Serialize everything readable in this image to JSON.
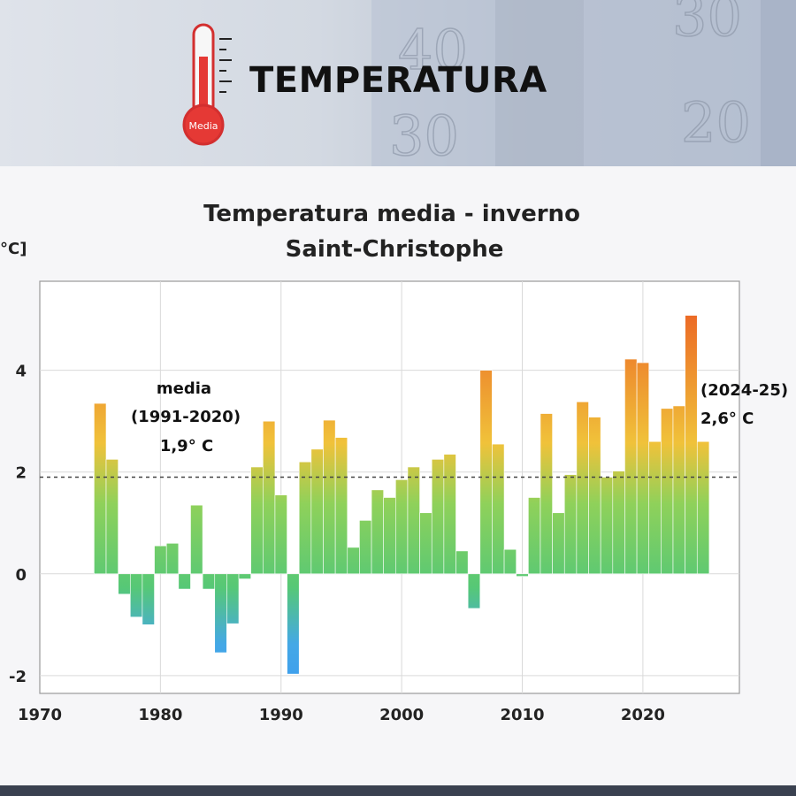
{
  "header": {
    "title": "TEMPERATURA",
    "thermometer_label": "Media",
    "background_numbers": [
      "40",
      "30",
      "30",
      "20"
    ]
  },
  "chart_data": {
    "type": "bar",
    "title": "Temperatura media - inverno",
    "subtitle": "Saint-Christophe",
    "ylabel": "°C]",
    "xlim": [
      1970,
      2028
    ],
    "ylim": [
      -2.35,
      5.75
    ],
    "x_ticks": [
      1970,
      1980,
      1990,
      2000,
      2010,
      2020
    ],
    "y_ticks": [
      -2,
      0,
      2,
      4
    ],
    "grid": true,
    "reference_line": {
      "value": 1.9,
      "style": "dashed"
    },
    "annotations": [
      {
        "lines": [
          "media",
          "(1991-2020)",
          "1,9° C"
        ]
      },
      {
        "lines": [
          "(2024-25)",
          "2,6° C"
        ]
      }
    ],
    "x": [
      1975,
      1976,
      1977,
      1978,
      1979,
      1980,
      1981,
      1982,
      1983,
      1984,
      1985,
      1986,
      1987,
      1988,
      1989,
      1990,
      1991,
      1992,
      1993,
      1994,
      1995,
      1996,
      1997,
      1998,
      1999,
      2000,
      2001,
      2002,
      2003,
      2004,
      2005,
      2006,
      2007,
      2008,
      2009,
      2010,
      2011,
      2012,
      2013,
      2014,
      2015,
      2016,
      2017,
      2018,
      2019,
      2020,
      2021,
      2022,
      2023,
      2024,
      2025
    ],
    "values": [
      3.35,
      2.25,
      -0.4,
      -0.85,
      -1.0,
      0.55,
      0.6,
      -0.3,
      1.35,
      -0.3,
      -1.55,
      -0.98,
      -0.1,
      2.1,
      3.0,
      1.55,
      -1.97,
      2.2,
      2.45,
      3.02,
      2.68,
      0.52,
      1.05,
      1.65,
      1.5,
      1.85,
      2.1,
      1.2,
      2.25,
      2.35,
      0.45,
      -0.68,
      4.0,
      2.55,
      0.48,
      -0.05,
      1.5,
      3.15,
      1.2,
      1.95,
      3.38,
      3.08,
      1.9,
      2.02,
      4.22,
      4.15,
      2.6,
      3.25,
      3.3,
      5.08,
      2.6
    ],
    "colors": {
      "cold": "#3d9cf0",
      "mid": "#56c876",
      "warm": "#f0c23a",
      "hot": "#ec6a26"
    }
  }
}
